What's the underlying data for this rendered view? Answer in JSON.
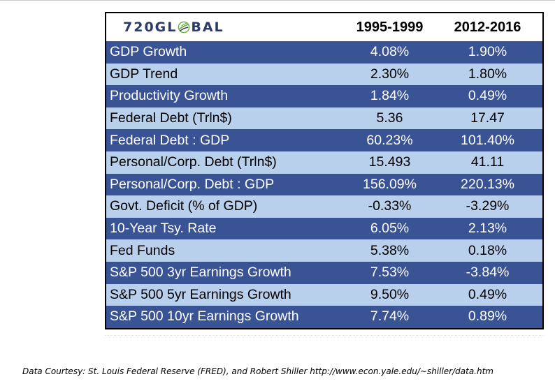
{
  "logo_text": "720GLOBAL",
  "logo_parts": {
    "left": "720GL",
    "right": "BAL"
  },
  "columns": [
    "1995-1999",
    "2012-2016"
  ],
  "rows": [
    {
      "label": "GDP Growth",
      "v1": "4.08%",
      "v2": "1.90%"
    },
    {
      "label": "GDP Trend",
      "v1": "2.30%",
      "v2": "1.80%"
    },
    {
      "label": "Productivity Growth",
      "v1": "1.84%",
      "v2": "0.49%"
    },
    {
      "label": "Federal Debt (Trln$)",
      "v1": "5.36",
      "v2": "17.47"
    },
    {
      "label": "Federal Debt : GDP",
      "v1": "60.23%",
      "v2": "101.40%"
    },
    {
      "label": "Personal/Corp. Debt (Trln$)",
      "v1": "15.493",
      "v2": "41.11"
    },
    {
      "label": "Personal/Corp. Debt : GDP",
      "v1": "156.09%",
      "v2": "220.13%"
    },
    {
      "label": "Govt. Deficit (% of GDP)",
      "v1": "-0.33%",
      "v2": "-3.29%"
    },
    {
      "label": "10-Year Tsy. Rate",
      "v1": "6.05%",
      "v2": "2.13%"
    },
    {
      "label": "Fed Funds",
      "v1": "5.38%",
      "v2": "0.18%"
    },
    {
      "label": "S&P 500 3yr Earnings Growth",
      "v1": "7.53%",
      "v2": "-3.84%"
    },
    {
      "label": "S&P 500 5yr Earnings Growth",
      "v1": "9.50%",
      "v2": "0.49%"
    },
    {
      "label": "S&P 500 10yr Earnings Growth",
      "v1": "7.74%",
      "v2": "0.89%"
    }
  ],
  "footnote": "Data Courtesy: St. Louis Federal Reserve (FRED), and Robert Shiller http://www.econ.yale.edu/~shiller/data.htm",
  "colors": {
    "dark_row": "#3a5394",
    "light_row": "#b8d0ec",
    "logo": "#2b3a67",
    "globe_green": "#6fb043"
  },
  "chart_data": {
    "type": "table",
    "columns": [
      "",
      "1995-1999",
      "2012-2016"
    ],
    "rows": [
      [
        "GDP Growth",
        "4.08%",
        "1.90%"
      ],
      [
        "GDP Trend",
        "2.30%",
        "1.80%"
      ],
      [
        "Productivity Growth",
        "1.84%",
        "0.49%"
      ],
      [
        "Federal Debt (Trln$)",
        "5.36",
        "17.47"
      ],
      [
        "Federal Debt : GDP",
        "60.23%",
        "101.40%"
      ],
      [
        "Personal/Corp. Debt (Trln$)",
        "15.493",
        "41.11"
      ],
      [
        "Personal/Corp. Debt : GDP",
        "156.09%",
        "220.13%"
      ],
      [
        "Govt. Deficit (% of GDP)",
        "-0.33%",
        "-3.29%"
      ],
      [
        "10-Year Tsy. Rate",
        "6.05%",
        "2.13%"
      ],
      [
        "Fed Funds",
        "5.38%",
        "0.18%"
      ],
      [
        "S&P 500 3yr Earnings Growth",
        "7.53%",
        "-3.84%"
      ],
      [
        "S&P 500 5yr Earnings Growth",
        "9.50%",
        "0.49%"
      ],
      [
        "S&P 500 10yr Earnings Growth",
        "7.74%",
        "0.89%"
      ]
    ]
  }
}
